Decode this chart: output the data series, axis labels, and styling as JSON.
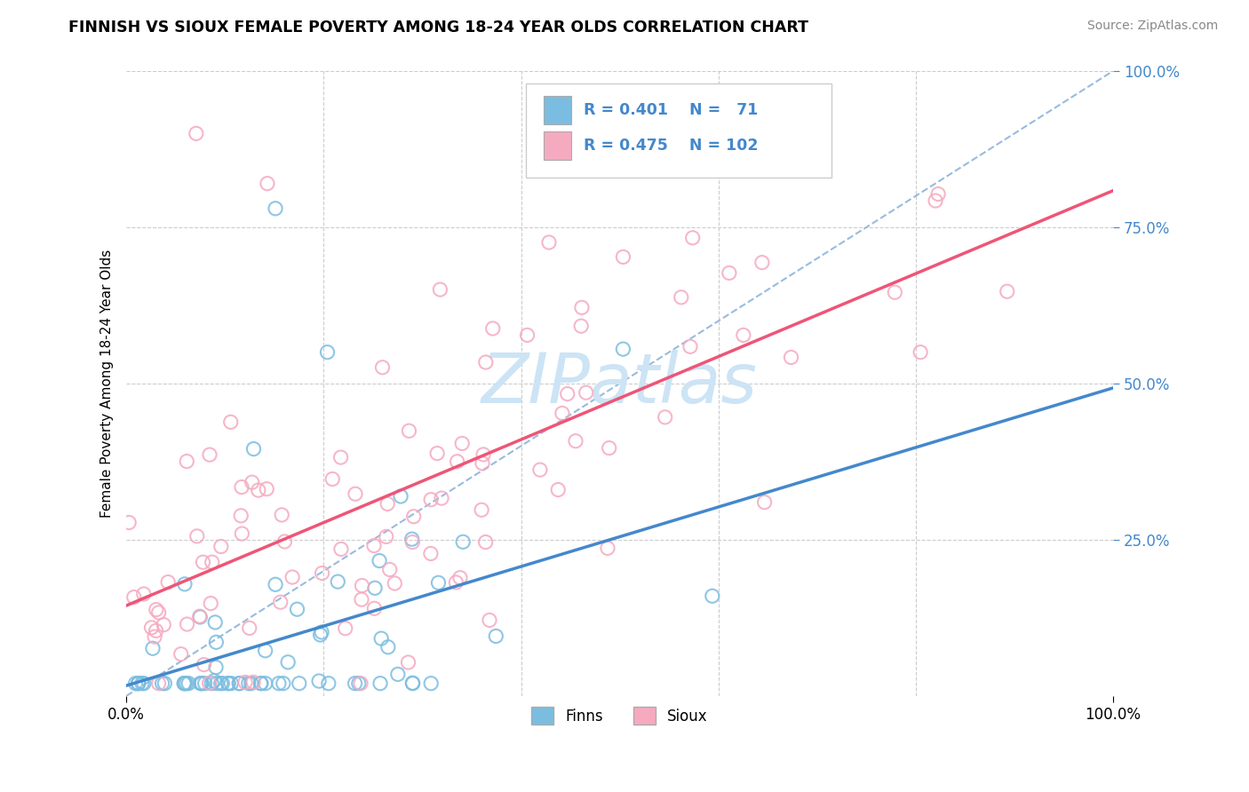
{
  "title": "FINNISH VS SIOUX FEMALE POVERTY AMONG 18-24 YEAR OLDS CORRELATION CHART",
  "source_text": "Source: ZipAtlas.com",
  "ylabel": "Female Poverty Among 18-24 Year Olds",
  "color_finns": "#7bbde0",
  "color_sioux": "#f5aac0",
  "color_finns_line": "#4488cc",
  "color_sioux_line": "#ee5577",
  "color_diagonal": "#99bbdd",
  "color_ytick": "#4488cc",
  "watermark_color": "#cce4f5",
  "legend_box_color": "#eeeeee",
  "legend_box_edge": "#cccccc",
  "grid_color": "#cccccc",
  "r_finns": "0.401",
  "n_finns": "71",
  "r_sioux": "0.475",
  "n_sioux": "102",
  "label_finns": "Finns",
  "label_sioux": "Sioux"
}
